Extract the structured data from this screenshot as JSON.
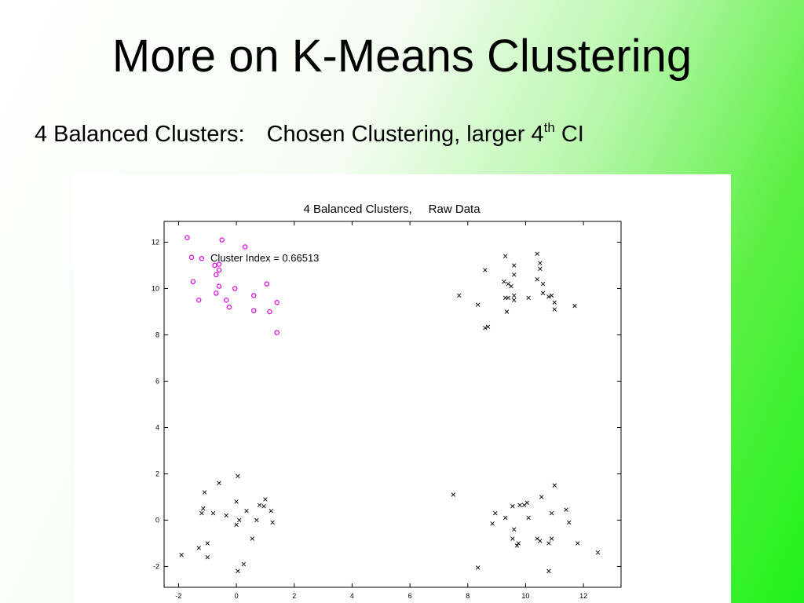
{
  "slide": {
    "title": "More on K-Means Clustering",
    "subtitle_left": "4 Balanced Clusters:",
    "subtitle_right": "Chosen Clustering, larger 4",
    "subtitle_sup": "th",
    "subtitle_end": " CI"
  },
  "colors": {
    "highlight_cluster": "#dd00dd",
    "other_points": "#000000"
  },
  "chart_data": {
    "type": "scatter",
    "title": "4 Balanced Clusters,     Raw Data",
    "annotation": "Cluster Index = 0.66513",
    "xlabel": "",
    "ylabel": "",
    "xlim": [
      -2.5,
      13.3
    ],
    "ylim": [
      -2.9,
      12.9
    ],
    "xticks": [
      -2,
      0,
      2,
      4,
      6,
      8,
      10,
      12
    ],
    "yticks": [
      -2,
      0,
      2,
      4,
      6,
      8,
      10,
      12
    ],
    "grid": false,
    "series": [
      {
        "marker": "circle",
        "color": "#dd00dd",
        "x": [
          -1.7,
          -0.5,
          0.3,
          -1.55,
          -1.2,
          -0.6,
          -0.75,
          -0.6,
          -0.7,
          -1.5,
          -0.6,
          1.05,
          -0.05,
          -0.7,
          0.6,
          -1.3,
          -0.35,
          1.4,
          -0.25,
          0.6,
          1.15,
          1.4
        ],
        "y": [
          12.2,
          12.1,
          11.8,
          11.35,
          11.3,
          11.05,
          11.0,
          10.8,
          10.6,
          10.3,
          10.1,
          10.2,
          10.0,
          9.8,
          9.7,
          9.5,
          9.5,
          9.4,
          9.2,
          9.05,
          9.0,
          8.1
        ]
      },
      {
        "marker": "x",
        "color": "#000000",
        "x": [
          10.4,
          9.3,
          10.5,
          8.6,
          9.6,
          10.5,
          9.6,
          9.25,
          10.4,
          9.4,
          9.5,
          10.6,
          7.7,
          9.3,
          9.6,
          10.1,
          10.6,
          10.9,
          8.35,
          11.0,
          11.7,
          9.35,
          8.7,
          8.6,
          11.0,
          10.8,
          9.4,
          9.6
        ],
        "y": [
          11.5,
          11.4,
          11.1,
          10.8,
          11.0,
          10.85,
          10.6,
          10.3,
          10.4,
          10.2,
          10.1,
          10.2,
          9.7,
          9.6,
          9.7,
          9.6,
          9.8,
          9.7,
          9.3,
          9.1,
          9.25,
          9.0,
          8.35,
          8.3,
          9.4,
          9.65,
          9.6,
          9.5
        ]
      },
      {
        "marker": "x",
        "color": "#000000",
        "x": [
          0.05,
          -0.6,
          -1.1,
          1.0,
          0.0,
          -1.15,
          -1.2,
          0.35,
          -0.35,
          -0.8,
          1.2,
          0.1,
          1.25,
          0.0,
          0.7,
          0.95,
          -1.3,
          -1.0,
          0.55,
          -1.9,
          -1.0,
          0.25,
          0.05,
          0.8
        ],
        "y": [
          1.9,
          1.6,
          1.2,
          0.9,
          0.8,
          0.5,
          0.3,
          0.4,
          0.2,
          0.3,
          0.4,
          0.0,
          -0.1,
          -0.2,
          0.0,
          0.6,
          -1.2,
          -1.0,
          -0.8,
          -1.5,
          -1.6,
          -1.9,
          -2.2,
          0.65
        ]
      },
      {
        "marker": "x",
        "color": "#000000",
        "x": [
          7.5,
          11.0,
          10.55,
          10.05,
          11.4,
          9.55,
          8.95,
          9.8,
          10.1,
          10.9,
          9.95,
          9.3,
          11.5,
          8.85,
          10.9,
          9.6,
          10.5,
          10.4,
          9.55,
          9.75,
          10.8,
          11.8,
          12.5,
          9.7,
          8.35,
          10.8
        ],
        "y": [
          1.1,
          1.5,
          1.0,
          0.75,
          0.45,
          0.6,
          0.3,
          0.65,
          0.1,
          0.3,
          0.65,
          0.1,
          -0.1,
          -0.15,
          -0.8,
          -0.4,
          -0.9,
          -0.8,
          -0.8,
          -1.0,
          -1.0,
          -1.0,
          -1.4,
          -1.1,
          -2.05,
          -2.2
        ]
      }
    ]
  }
}
